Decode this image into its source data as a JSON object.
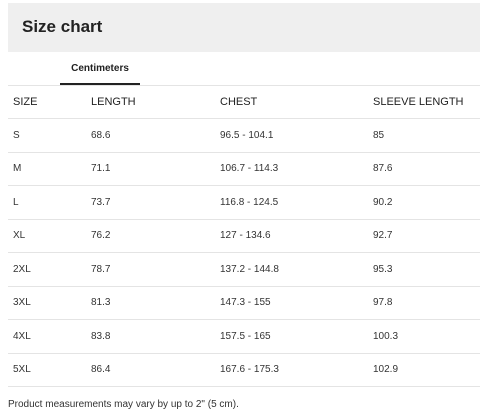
{
  "header": {
    "title": "Size chart"
  },
  "tabs": [
    {
      "label": "Centimeters",
      "active": true
    }
  ],
  "table": {
    "columns": [
      "SIZE",
      "LENGTH",
      "CHEST",
      "SLEEVE LENGTH"
    ],
    "rows": [
      [
        "S",
        "68.6",
        "96.5 - 104.1",
        "85"
      ],
      [
        "M",
        "71.1",
        "106.7 - 114.3",
        "87.6"
      ],
      [
        "L",
        "73.7",
        "116.8 - 124.5",
        "90.2"
      ],
      [
        "XL",
        "76.2",
        "127 - 134.6",
        "92.7"
      ],
      [
        "2XL",
        "78.7",
        "137.2 - 144.8",
        "95.3"
      ],
      [
        "3XL",
        "81.3",
        "147.3 - 155",
        "97.8"
      ],
      [
        "4XL",
        "83.8",
        "157.5 - 165",
        "100.3"
      ],
      [
        "5XL",
        "86.4",
        "167.6 - 175.3",
        "102.9"
      ]
    ]
  },
  "footnote": "Product measurements may vary by up to 2\" (5 cm).",
  "colors": {
    "header_background": "#efefef",
    "tab_underline": "#222222",
    "row_divider": "#e4e4e4"
  }
}
